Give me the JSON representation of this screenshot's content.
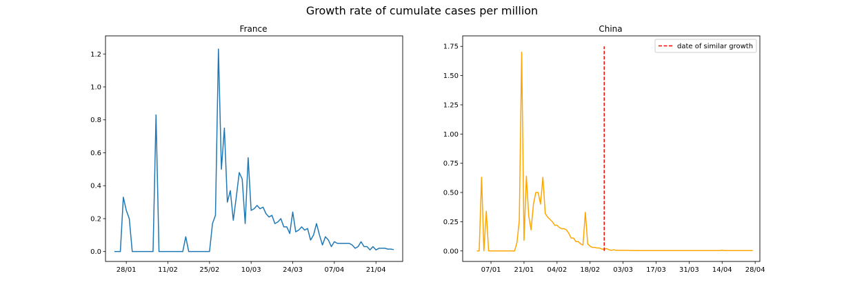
{
  "figure": {
    "suptitle": "Growth rate of cumulate cases per million"
  },
  "chart_data": [
    {
      "type": "line",
      "title": "France",
      "xlabel": "",
      "ylabel": "",
      "x_unit": "date",
      "xlim": [
        "2020-01-21",
        "2020-04-30"
      ],
      "ylim": [
        -0.06,
        1.31
      ],
      "x_ticks": [
        "2020-01-28",
        "2020-02-11",
        "2020-02-25",
        "2020-03-10",
        "2020-03-24",
        "2020-04-07",
        "2020-04-21"
      ],
      "x_tick_labels": [
        "28/01",
        "11/02",
        "25/02",
        "10/03",
        "24/03",
        "07/04",
        "21/04"
      ],
      "y_ticks": [
        0.0,
        0.2,
        0.4,
        0.6,
        0.8,
        1.0,
        1.2
      ],
      "y_tick_labels": [
        "0.0",
        "0.2",
        "0.4",
        "0.6",
        "0.8",
        "1.0",
        "1.2"
      ],
      "grid": false,
      "series": [
        {
          "color": "#1f77b4",
          "x": [
            "2020-01-24",
            "2020-01-25",
            "2020-01-26",
            "2020-01-27",
            "2020-01-28",
            "2020-01-29",
            "2020-01-30",
            "2020-01-31",
            "2020-02-01",
            "2020-02-02",
            "2020-02-03",
            "2020-02-04",
            "2020-02-05",
            "2020-02-06",
            "2020-02-07",
            "2020-02-08",
            "2020-02-09",
            "2020-02-10",
            "2020-02-11",
            "2020-02-12",
            "2020-02-13",
            "2020-02-14",
            "2020-02-15",
            "2020-02-16",
            "2020-02-17",
            "2020-02-18",
            "2020-02-19",
            "2020-02-20",
            "2020-02-21",
            "2020-02-22",
            "2020-02-23",
            "2020-02-24",
            "2020-02-25",
            "2020-02-26",
            "2020-02-27",
            "2020-02-28",
            "2020-02-29",
            "2020-03-01",
            "2020-03-02",
            "2020-03-03",
            "2020-03-04",
            "2020-03-05",
            "2020-03-06",
            "2020-03-07",
            "2020-03-08",
            "2020-03-09",
            "2020-03-10",
            "2020-03-11",
            "2020-03-12",
            "2020-03-13",
            "2020-03-14",
            "2020-03-15",
            "2020-03-16",
            "2020-03-17",
            "2020-03-18",
            "2020-03-19",
            "2020-03-20",
            "2020-03-21",
            "2020-03-22",
            "2020-03-23",
            "2020-03-24",
            "2020-03-25",
            "2020-03-26",
            "2020-03-27",
            "2020-03-28",
            "2020-03-29",
            "2020-03-30",
            "2020-03-31",
            "2020-04-01",
            "2020-04-02",
            "2020-04-03",
            "2020-04-04",
            "2020-04-05",
            "2020-04-06",
            "2020-04-07",
            "2020-04-08",
            "2020-04-09",
            "2020-04-10",
            "2020-04-11",
            "2020-04-12",
            "2020-04-13",
            "2020-04-14",
            "2020-04-15",
            "2020-04-16",
            "2020-04-17",
            "2020-04-18",
            "2020-04-19",
            "2020-04-20",
            "2020-04-21",
            "2020-04-22",
            "2020-04-23",
            "2020-04-24",
            "2020-04-25",
            "2020-04-26",
            "2020-04-27"
          ],
          "values": [
            0,
            0,
            0,
            0.33,
            0.25,
            0.2,
            0,
            0,
            0,
            0,
            0,
            0,
            0,
            0,
            0.83,
            0,
            0,
            0,
            0,
            0,
            0,
            0,
            0,
            0,
            0.09,
            0,
            0,
            0,
            0,
            0,
            0,
            0,
            0,
            0.17,
            0.22,
            1.23,
            0.5,
            0.75,
            0.3,
            0.37,
            0.19,
            0.33,
            0.48,
            0.44,
            0.17,
            0.57,
            0.25,
            0.26,
            0.28,
            0.26,
            0.27,
            0.23,
            0.21,
            0.22,
            0.17,
            0.18,
            0.2,
            0.15,
            0.15,
            0.11,
            0.24,
            0.12,
            0.13,
            0.15,
            0.13,
            0.14,
            0.07,
            0.1,
            0.17,
            0.1,
            0.04,
            0.09,
            0.07,
            0.03,
            0.06,
            0.05,
            0.05,
            0.05,
            0.05,
            0.05,
            0.04,
            0.02,
            0.03,
            0.06,
            0.03,
            0.03,
            0.01,
            0.03,
            0.01,
            0.02,
            0.02,
            0.02,
            0.015,
            0.015,
            0.012
          ]
        }
      ]
    },
    {
      "type": "line",
      "title": "China",
      "xlabel": "",
      "ylabel": "",
      "x_unit": "date",
      "xlim": [
        "2019-12-26",
        "2020-04-30"
      ],
      "ylim": [
        -0.09,
        1.84
      ],
      "x_ticks": [
        "2020-01-07",
        "2020-01-21",
        "2020-02-04",
        "2020-02-18",
        "2020-03-03",
        "2020-03-17",
        "2020-03-31",
        "2020-04-14",
        "2020-04-28"
      ],
      "x_tick_labels": [
        "07/01",
        "21/01",
        "04/02",
        "18/02",
        "03/03",
        "17/03",
        "31/03",
        "14/04",
        "28/04"
      ],
      "y_ticks": [
        0.0,
        0.25,
        0.5,
        0.75,
        1.0,
        1.25,
        1.5,
        1.75
      ],
      "y_tick_labels": [
        "0.00",
        "0.25",
        "0.50",
        "0.75",
        "1.00",
        "1.25",
        "1.50",
        "1.75"
      ],
      "grid": false,
      "legend": {
        "position": "top-right",
        "entries": [
          {
            "label": "date of similar growth",
            "color": "#ff0000",
            "style": "dashed"
          }
        ]
      },
      "series": [
        {
          "color": "#ffa500",
          "x": [
            "2020-01-01",
            "2020-01-02",
            "2020-01-03",
            "2020-01-04",
            "2020-01-05",
            "2020-01-06",
            "2020-01-07",
            "2020-01-08",
            "2020-01-09",
            "2020-01-10",
            "2020-01-11",
            "2020-01-12",
            "2020-01-13",
            "2020-01-14",
            "2020-01-15",
            "2020-01-16",
            "2020-01-17",
            "2020-01-18",
            "2020-01-19",
            "2020-01-20",
            "2020-01-21",
            "2020-01-22",
            "2020-01-23",
            "2020-01-24",
            "2020-01-25",
            "2020-01-26",
            "2020-01-27",
            "2020-01-28",
            "2020-01-29",
            "2020-01-30",
            "2020-01-31",
            "2020-02-01",
            "2020-02-02",
            "2020-02-03",
            "2020-02-04",
            "2020-02-05",
            "2020-02-06",
            "2020-02-07",
            "2020-02-08",
            "2020-02-09",
            "2020-02-10",
            "2020-02-11",
            "2020-02-12",
            "2020-02-13",
            "2020-02-14",
            "2020-02-15",
            "2020-02-16",
            "2020-02-17",
            "2020-02-18",
            "2020-02-19",
            "2020-02-20",
            "2020-02-21",
            "2020-02-22",
            "2020-02-23",
            "2020-02-24",
            "2020-02-25",
            "2020-02-26",
            "2020-02-27",
            "2020-02-28",
            "2020-02-29",
            "2020-03-01",
            "2020-03-04",
            "2020-03-08",
            "2020-03-12",
            "2020-03-16",
            "2020-03-20",
            "2020-03-24",
            "2020-03-28",
            "2020-04-01",
            "2020-04-05",
            "2020-04-09",
            "2020-04-13",
            "2020-04-14",
            "2020-04-15",
            "2020-04-19",
            "2020-04-23",
            "2020-04-27"
          ],
          "values": [
            0,
            0,
            0.63,
            0,
            0.34,
            0,
            0,
            0,
            0,
            0,
            0,
            0,
            0,
            0,
            0,
            0,
            0,
            0.07,
            0.26,
            1.7,
            0.09,
            0.64,
            0.3,
            0.18,
            0.4,
            0.5,
            0.5,
            0.4,
            0.63,
            0.32,
            0.29,
            0.27,
            0.25,
            0.22,
            0.22,
            0.2,
            0.19,
            0.19,
            0.18,
            0.15,
            0.11,
            0.11,
            0.08,
            0.08,
            0.06,
            0.05,
            0.33,
            0.06,
            0.04,
            0.03,
            0.03,
            0.025,
            0.025,
            0.015,
            0.015,
            0.02,
            0.01,
            0.005,
            0.01,
            0.005,
            0.005,
            0.005,
            0.003,
            0.003,
            0.003,
            0.003,
            0.003,
            0.003,
            0.003,
            0.003,
            0.003,
            0.003,
            0.006,
            0.003,
            0.003,
            0.003,
            0.003
          ]
        }
      ],
      "vertical_line": {
        "x": "2020-02-24",
        "y_range": [
          0,
          1.75
        ],
        "color": "#ff0000",
        "style": "dashed",
        "label": "date of similar growth"
      }
    }
  ]
}
